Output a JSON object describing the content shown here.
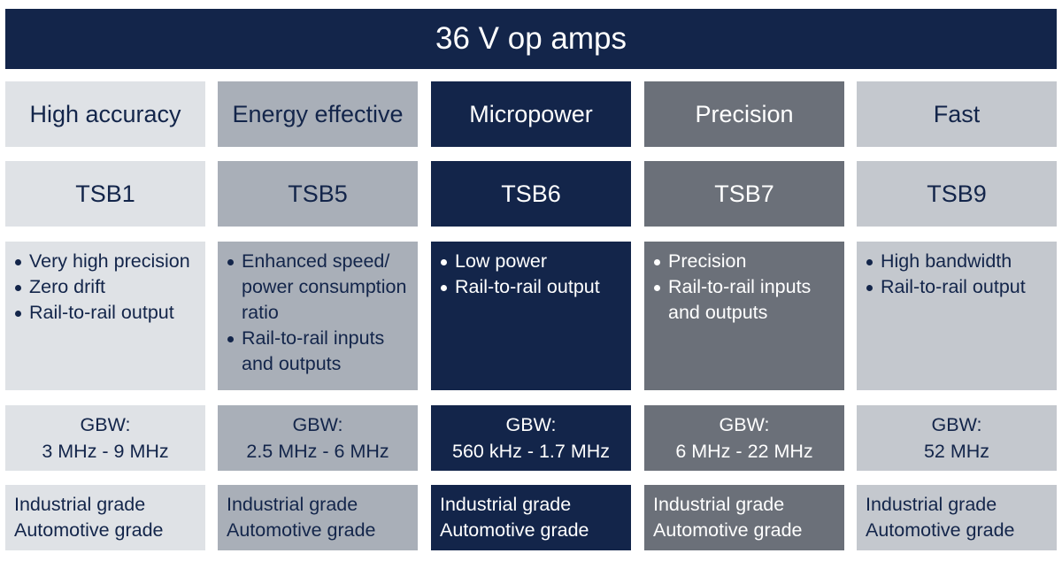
{
  "title": "36 V op amps",
  "columns": [
    {
      "category": "High accuracy",
      "part": "TSB1",
      "features": [
        "Very high precision",
        "Zero drift",
        "Rail-to-rail output"
      ],
      "gbw": {
        "label": "GBW:",
        "range": "3 MHz - 9 MHz"
      },
      "grades": [
        "Industrial grade",
        "Automotive grade"
      ]
    },
    {
      "category": "Energy effective",
      "part": "TSB5",
      "features": [
        "Enhanced speed/ power consumption ratio",
        "Rail-to-rail inputs and outputs"
      ],
      "gbw": {
        "label": "GBW:",
        "range": "2.5 MHz - 6 MHz"
      },
      "grades": [
        "Industrial grade",
        "Automotive grade"
      ]
    },
    {
      "category": "Micropower",
      "part": "TSB6",
      "features": [
        "Low power",
        "Rail-to-rail output"
      ],
      "gbw": {
        "label": "GBW:",
        "range": "560 kHz - 1.7 MHz"
      },
      "grades": [
        "Industrial grade",
        "Automotive grade"
      ]
    },
    {
      "category": "Precision",
      "part": "TSB7",
      "features": [
        "Precision",
        "Rail-to-rail inputs and outputs"
      ],
      "gbw": {
        "label": "GBW:",
        "range": "6 MHz - 22 MHz"
      },
      "grades": [
        "Industrial grade",
        "Automotive grade"
      ]
    },
    {
      "category": "Fast",
      "part": "TSB9",
      "features": [
        "High bandwidth",
        "Rail-to-rail output"
      ],
      "gbw": {
        "label": "GBW:",
        "range": "52 MHz"
      },
      "grades": [
        "Industrial grade",
        "Automotive grade"
      ]
    }
  ]
}
